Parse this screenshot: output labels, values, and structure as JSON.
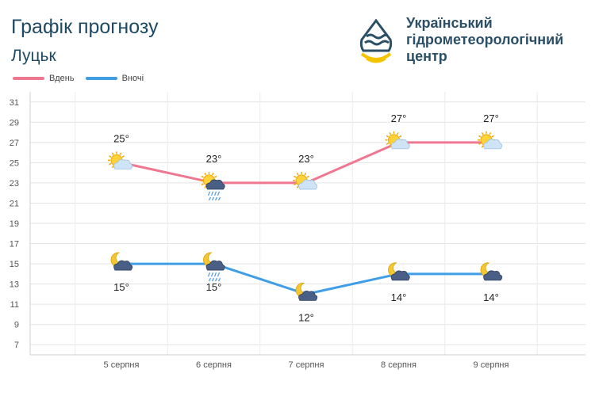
{
  "header": {
    "title": "Графік прогнозу",
    "city": "Луцьк",
    "org_line1": "Український",
    "org_line2": "гідрометеорологічний",
    "org_line3": "центр"
  },
  "colors": {
    "day": "#f07790",
    "night": "#3f9ee6",
    "title": "#1e4a63"
  },
  "chart_data": {
    "type": "line",
    "categories": [
      "5 серпня",
      "6 серпня",
      "7 серпня",
      "8 серпня",
      "9 серпня"
    ],
    "series": [
      {
        "name": "Вдень",
        "values": [
          25,
          23,
          23,
          27,
          27
        ],
        "labels": [
          "25°",
          "23°",
          "23°",
          "27°",
          "27°"
        ],
        "icons": [
          "sun-cloud",
          "sun-rain",
          "sun-cloud",
          "sun-cloud",
          "sun-cloud"
        ]
      },
      {
        "name": "Вночі",
        "values": [
          15,
          15,
          12,
          14,
          14
        ],
        "labels": [
          "15°",
          "15°",
          "12°",
          "14°",
          "14°"
        ],
        "icons": [
          "moon-cloud",
          "moon-rain",
          "moon-cloud",
          "moon-cloud",
          "moon-cloud"
        ]
      }
    ],
    "yticks": [
      7,
      9,
      11,
      13,
      15,
      17,
      19,
      21,
      23,
      25,
      27,
      29,
      31
    ],
    "ylim": [
      6,
      32
    ],
    "grid": true,
    "legend": "top-left"
  }
}
